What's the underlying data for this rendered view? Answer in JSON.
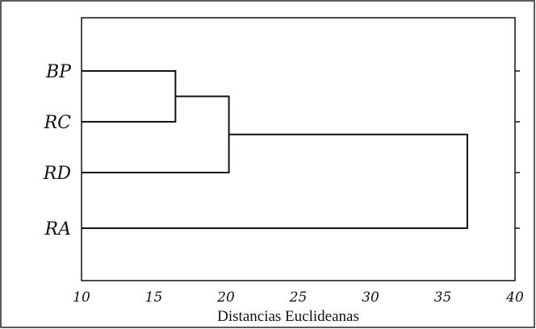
{
  "chart_data": {
    "type": "dendrogram",
    "title": "",
    "xlabel": "Distancias Euclideanas",
    "ylabel": "",
    "xlim": [
      10,
      40
    ],
    "xticks": [
      10,
      15,
      20,
      25,
      30,
      35,
      40
    ],
    "grid": false,
    "leaves": [
      "BP",
      "RC",
      "RD",
      "RA"
    ],
    "merges": [
      {
        "left": "BP",
        "right": "RC",
        "distance": 16.5
      },
      {
        "left": "BP+RC",
        "right": "RD",
        "distance": 20.2
      },
      {
        "left": "BP+RC+RD",
        "right": "RA",
        "distance": 36.7
      }
    ]
  }
}
